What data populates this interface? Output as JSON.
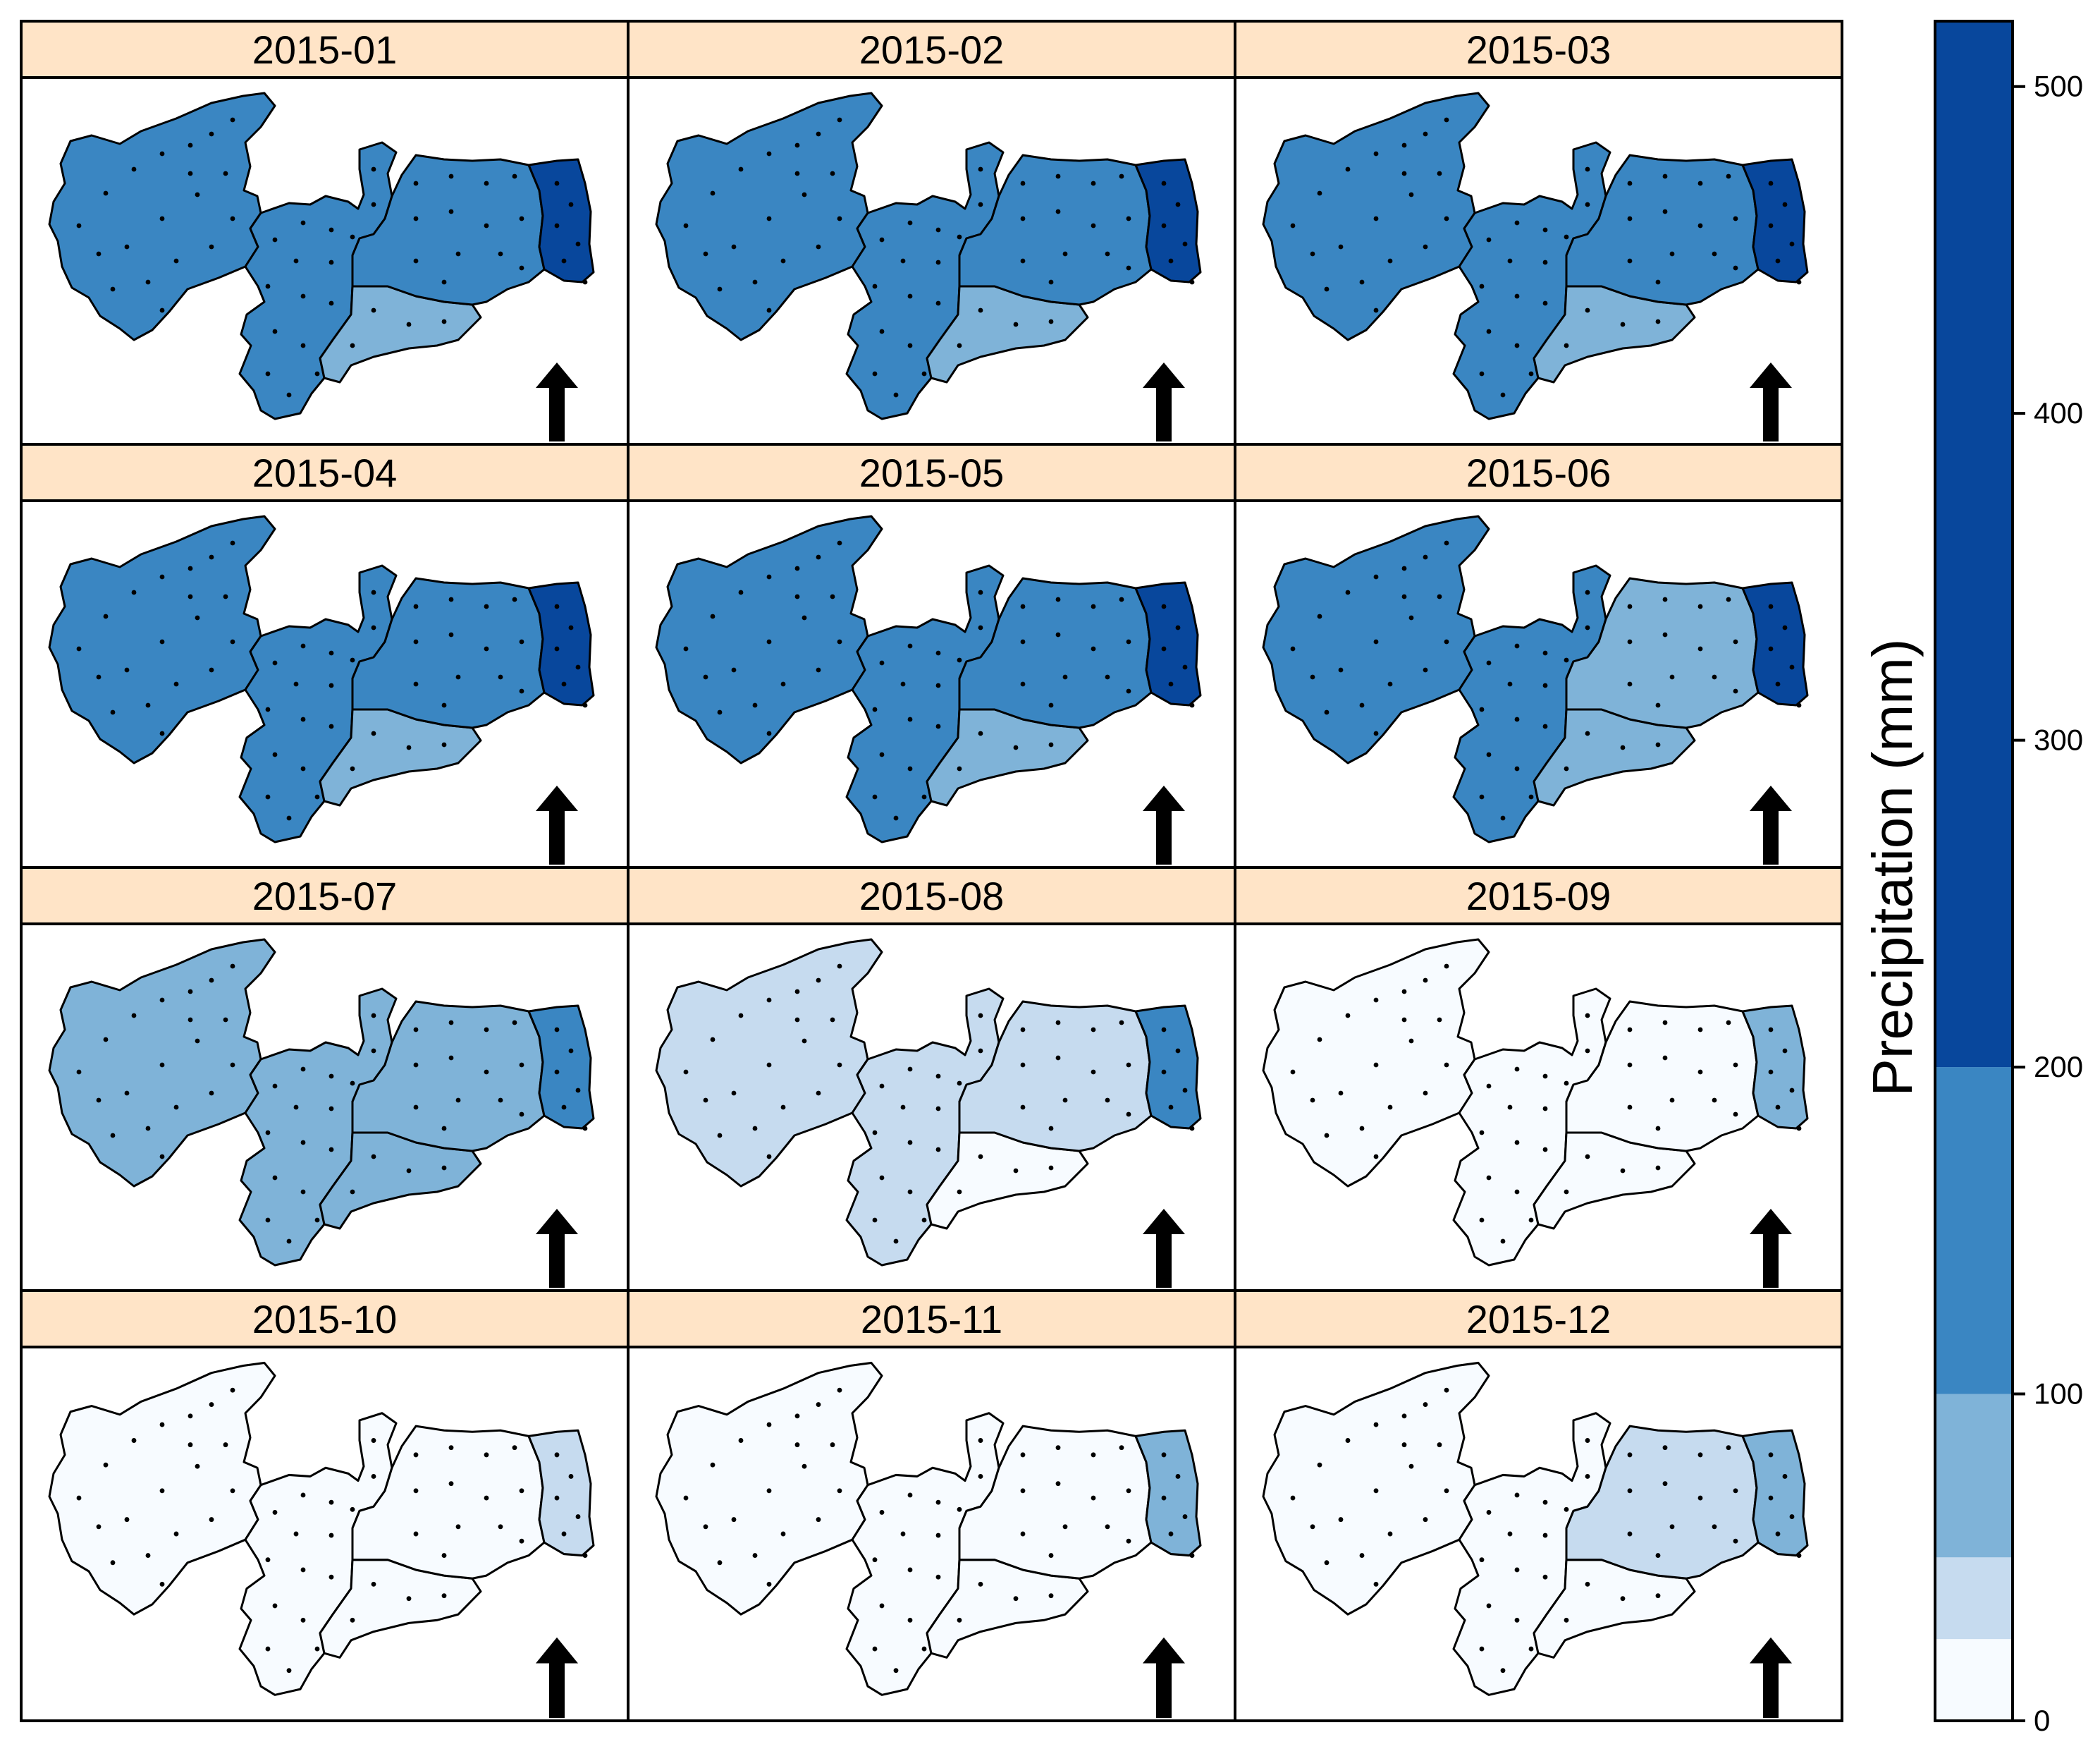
{
  "panels": [
    {
      "title": "2015-01",
      "levels": [
        3,
        3,
        2,
        3,
        4
      ]
    },
    {
      "title": "2015-02",
      "levels": [
        3,
        3,
        2,
        3,
        4
      ]
    },
    {
      "title": "2015-03",
      "levels": [
        3,
        3,
        2,
        3,
        4
      ]
    },
    {
      "title": "2015-04",
      "levels": [
        3,
        3,
        2,
        3,
        4
      ]
    },
    {
      "title": "2015-05",
      "levels": [
        3,
        3,
        2,
        3,
        4
      ]
    },
    {
      "title": "2015-06",
      "levels": [
        3,
        3,
        2,
        2,
        4
      ]
    },
    {
      "title": "2015-07",
      "levels": [
        2,
        2,
        2,
        2,
        3
      ]
    },
    {
      "title": "2015-08",
      "levels": [
        1,
        1,
        0,
        1,
        3
      ]
    },
    {
      "title": "2015-09",
      "levels": [
        0,
        0,
        0,
        0,
        2
      ]
    },
    {
      "title": "2015-10",
      "levels": [
        0,
        0,
        0,
        0,
        1
      ]
    },
    {
      "title": "2015-11",
      "levels": [
        0,
        0,
        0,
        0,
        2
      ]
    },
    {
      "title": "2015-12",
      "levels": [
        0,
        0,
        0,
        1,
        2
      ]
    }
  ],
  "legend": {
    "title": "Precipitation (mm)",
    "ticks": [
      {
        "label": "0",
        "value": 0
      },
      {
        "label": "100",
        "value": 100
      },
      {
        "label": "200",
        "value": 200
      },
      {
        "label": "300",
        "value": 300
      },
      {
        "label": "400",
        "value": 400
      },
      {
        "label": "500",
        "value": 500
      }
    ],
    "breaks": [
      0,
      25,
      50,
      100,
      200,
      520
    ],
    "colors": [
      "#f7fbff",
      "#c6dbef",
      "#7fb3d8",
      "#3a86c2",
      "#08479c"
    ]
  },
  "colors": {
    "strip": "#ffe4c7",
    "outline": "#000000",
    "arrow": "#000000"
  },
  "icons": {
    "arrow": "north-arrow-icon"
  }
}
